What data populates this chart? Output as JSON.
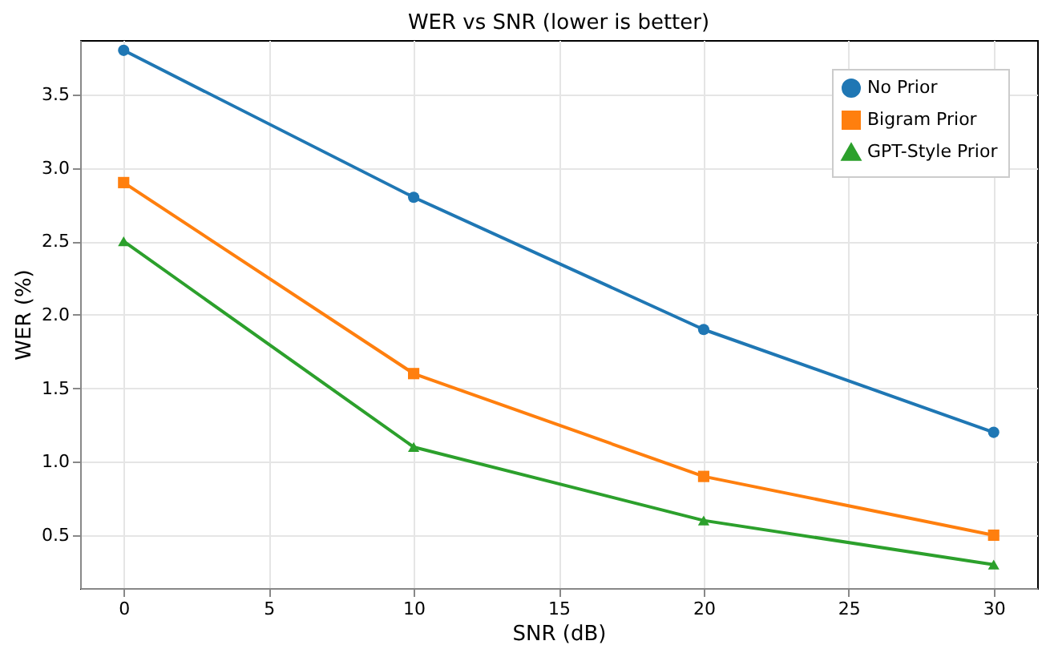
{
  "chart_data": {
    "type": "line",
    "title": "WER vs SNR (lower is better)",
    "xlabel": "SNR (dB)",
    "ylabel": "WER (%)",
    "x": [
      0,
      10,
      20,
      30
    ],
    "series": [
      {
        "name": "No Prior",
        "color": "#1f77b4",
        "marker": "circle",
        "values": [
          3.8,
          2.8,
          1.9,
          1.2
        ]
      },
      {
        "name": "Bigram Prior",
        "color": "#ff7f0e",
        "marker": "square",
        "values": [
          2.9,
          1.6,
          0.9,
          0.5
        ]
      },
      {
        "name": "GPT-Style Prior",
        "color": "#2ca02c",
        "marker": "triangle",
        "values": [
          2.5,
          1.1,
          0.6,
          0.3
        ]
      }
    ],
    "xlim": [
      -1.5,
      31.5
    ],
    "ylim": [
      0.14,
      3.87
    ],
    "xticks": [
      0,
      5,
      10,
      15,
      20,
      25,
      30
    ],
    "yticks": [
      0.5,
      {
        "value": 1,
        "label": "1.0"
      },
      1.5,
      {
        "value": 2,
        "label": "2.0"
      },
      2.5,
      {
        "value": 3,
        "label": "3.0"
      },
      3.5
    ],
    "grid": true,
    "legend": "top right",
    "line_style": "solid"
  }
}
